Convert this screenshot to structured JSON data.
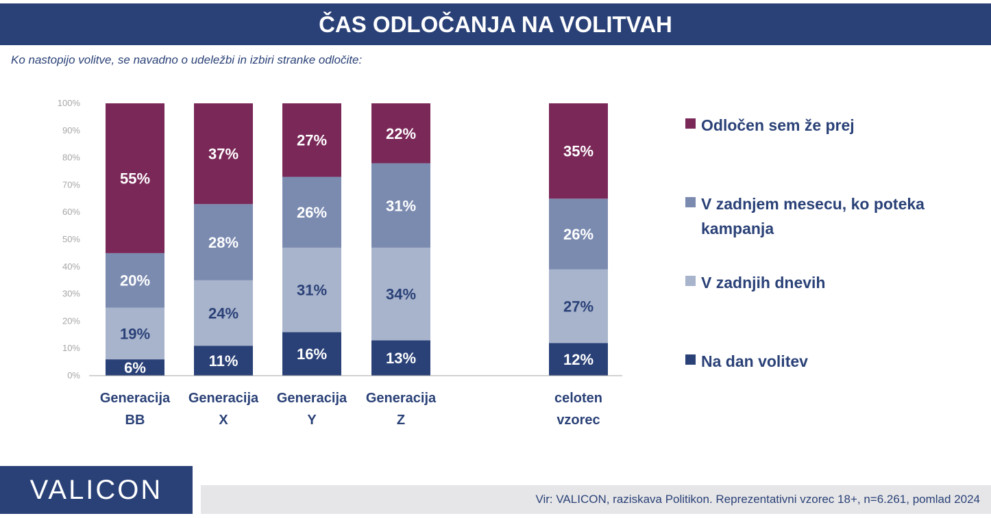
{
  "title": "ČAS ODLOČANJA NA VOLITVAH",
  "subtitle": "Ko nastopijo volitve, se navadno o udeležbi in izbiri stranke odločite:",
  "colors": {
    "header": "#2a4177",
    "series": [
      "#2a4177",
      "#a8b3cc",
      "#7b8bb0",
      "#7a2858"
    ]
  },
  "chart_data": {
    "type": "bar",
    "stacked": true,
    "categories": [
      [
        "Generacija",
        "BB"
      ],
      [
        "Generacija",
        "X"
      ],
      [
        "Generacija",
        "Y"
      ],
      [
        "Generacija",
        "Z"
      ],
      [
        "celoten",
        "vzorec"
      ]
    ],
    "ylim": [
      0,
      100
    ],
    "yticks": [
      "0%",
      "10%",
      "20%",
      "30%",
      "40%",
      "50%",
      "60%",
      "70%",
      "80%",
      "90%",
      "100%"
    ],
    "legend_position": "right",
    "series": [
      {
        "name": "Na dan volitev",
        "values": [
          6,
          11,
          16,
          13,
          12
        ],
        "labels": [
          "6%",
          "11%",
          "16%",
          "13%",
          "12%"
        ]
      },
      {
        "name": "V zadnjih dnevih",
        "values": [
          19,
          24,
          31,
          34,
          27
        ],
        "labels": [
          "19%",
          "24%",
          "31%",
          "34%",
          "27%"
        ]
      },
      {
        "name": "V zadnjem mesecu, ko poteka kampanja",
        "values": [
          20,
          28,
          26,
          31,
          26
        ],
        "labels": [
          "20%",
          "28%",
          "26%",
          "31%",
          "26%"
        ]
      },
      {
        "name": "Odločen sem že prej",
        "values": [
          55,
          37,
          27,
          22,
          35
        ],
        "labels": [
          "55%",
          "37%",
          "27%",
          "22%",
          "35%"
        ]
      }
    ]
  },
  "legend": [
    "Odločen sem že prej",
    "V zadnjem mesecu, ko poteka kampanja",
    "V zadnjih dnevih",
    "Na dan volitev"
  ],
  "logo": "VALICON",
  "source": "Vir: VALICON, raziskava Politikon. Reprezentativni vzorec 18+, n=6.261, pomlad 2024"
}
